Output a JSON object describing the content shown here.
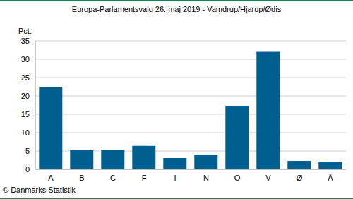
{
  "chart_data": {
    "type": "bar",
    "title": "Europa-Parlamentsvalg 26. maj 2019 - Vamdrup/Hjarup/Ødis",
    "ylabel": "Pct.",
    "source": "© Danmarks Statistik",
    "categories": [
      "A",
      "B",
      "C",
      "F",
      "I",
      "N",
      "O",
      "V",
      "Ø",
      "Å"
    ],
    "values": [
      22.5,
      5.2,
      5.4,
      6.4,
      3.1,
      3.9,
      17.3,
      32.2,
      2.3,
      1.9
    ],
    "color": "#005f8e",
    "ylim": [
      0,
      35
    ],
    "yticks": [
      0,
      5,
      10,
      15,
      20,
      25,
      30,
      35
    ],
    "grid": true
  }
}
